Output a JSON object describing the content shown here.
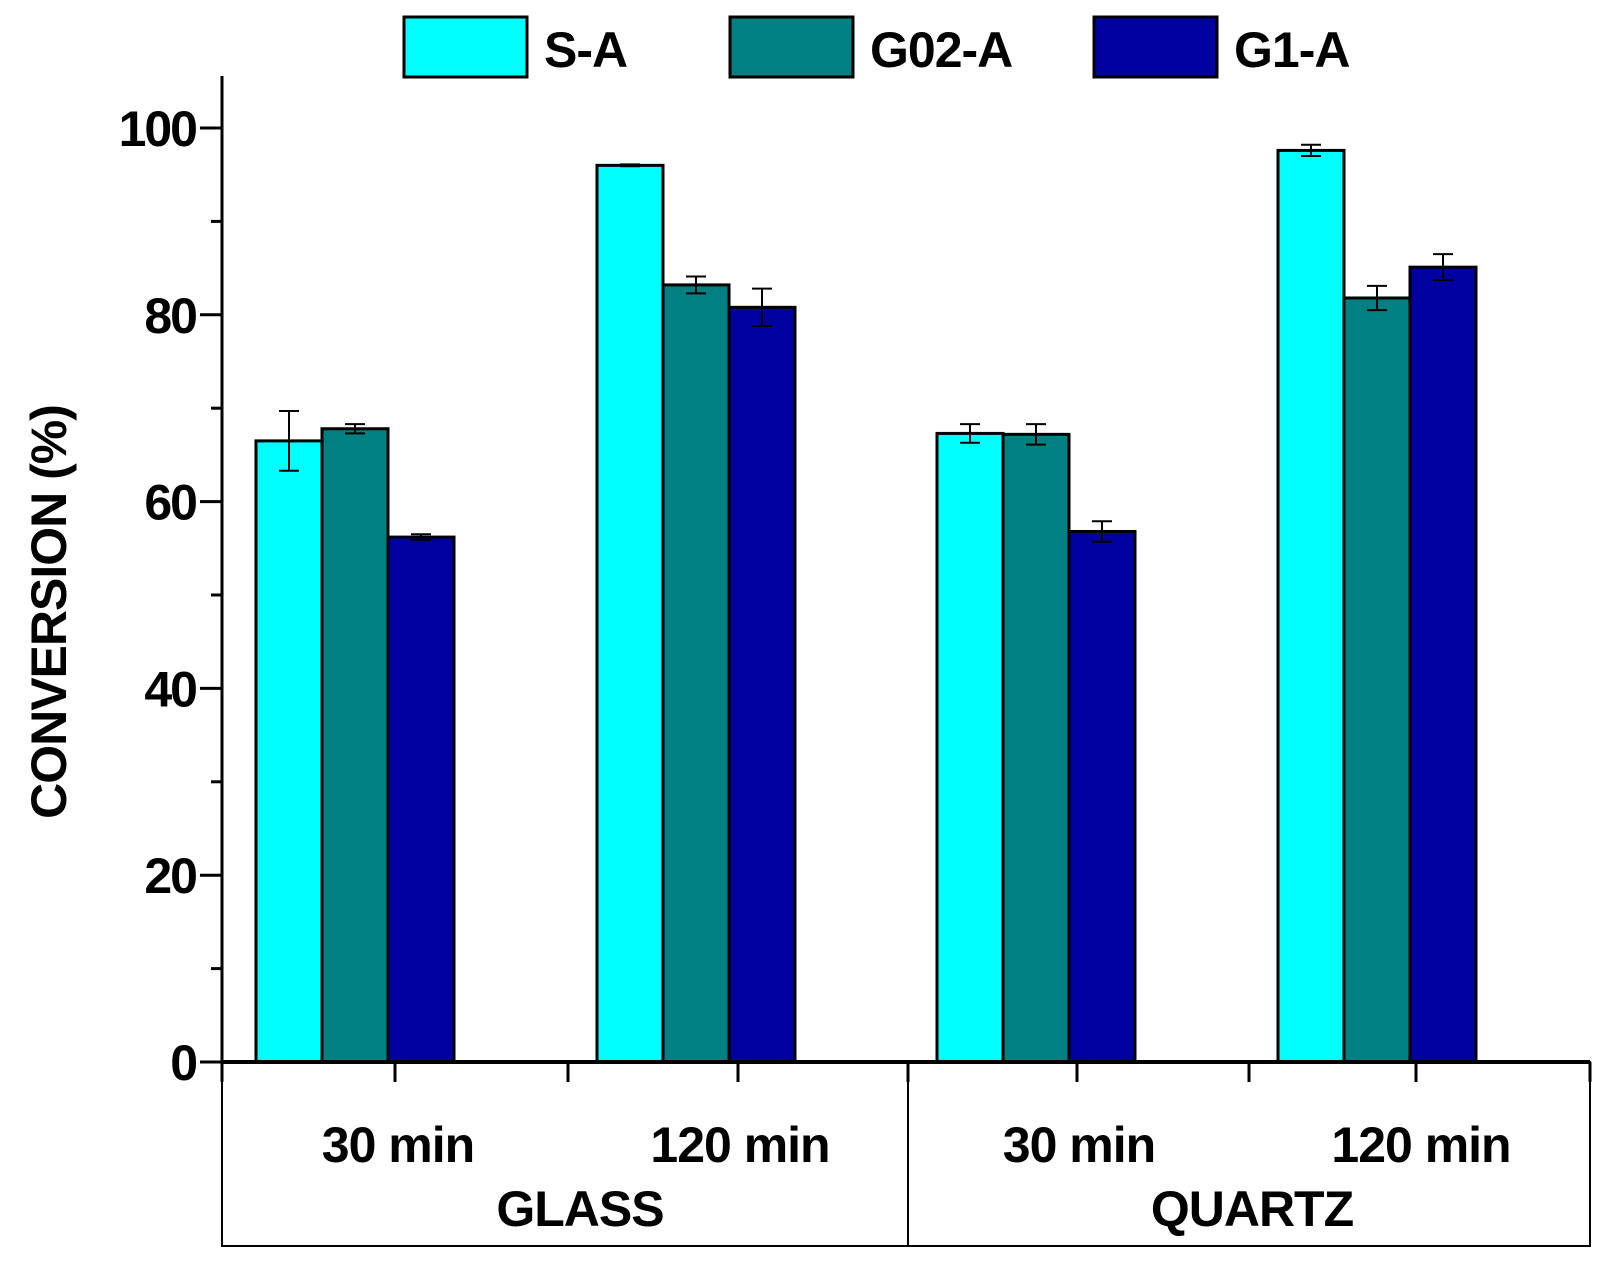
{
  "chart_data": {
    "type": "bar",
    "title": "",
    "ylabel": "CONVERSION (%)",
    "xlabel": "",
    "ylim": [
      0,
      105
    ],
    "yticks": [
      0,
      20,
      40,
      60,
      80,
      100
    ],
    "yticks_minor": [
      10,
      30,
      50,
      70,
      90
    ],
    "groups": [
      {
        "label": "GLASS",
        "categories": [
          "30 min",
          "120 min"
        ]
      },
      {
        "label": "QUARTZ",
        "categories": [
          "30 min",
          "120 min"
        ]
      }
    ],
    "categories": [
      "30 min",
      "120 min",
      "30 min",
      "120 min"
    ],
    "series": [
      {
        "name": "S-A",
        "color": "#00FFFF",
        "values": [
          66.5,
          96.0,
          67.3,
          97.6
        ],
        "errors": [
          3.2,
          0.1,
          1.0,
          0.6
        ]
      },
      {
        "name": "G02-A",
        "color": "#008080",
        "values": [
          67.8,
          83.2,
          67.2,
          81.8
        ],
        "errors": [
          0.5,
          0.9,
          1.1,
          1.3
        ]
      },
      {
        "name": "G1-A",
        "color": "#0000A0",
        "values": [
          56.2,
          80.8,
          56.8,
          85.1
        ],
        "errors": [
          0.3,
          2.0,
          1.1,
          1.4
        ]
      }
    ],
    "legend_position": "top",
    "grid": false
  }
}
